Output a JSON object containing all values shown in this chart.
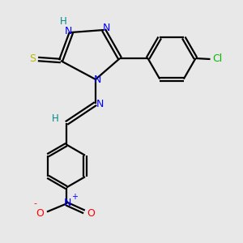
{
  "bg_color": "#e8e8e8",
  "bond_color": "#000000",
  "N_color": "#0000ff",
  "S_color": "#b8b800",
  "O_color": "#ff0000",
  "Cl_color": "#00bb00",
  "H_color": "#008888",
  "line_width": 1.6,
  "dbo": 0.025,
  "figsize": [
    3.0,
    3.0
  ],
  "dpi": 100,
  "xlim": [
    0,
    3.0
  ],
  "ylim": [
    0,
    3.0
  ]
}
